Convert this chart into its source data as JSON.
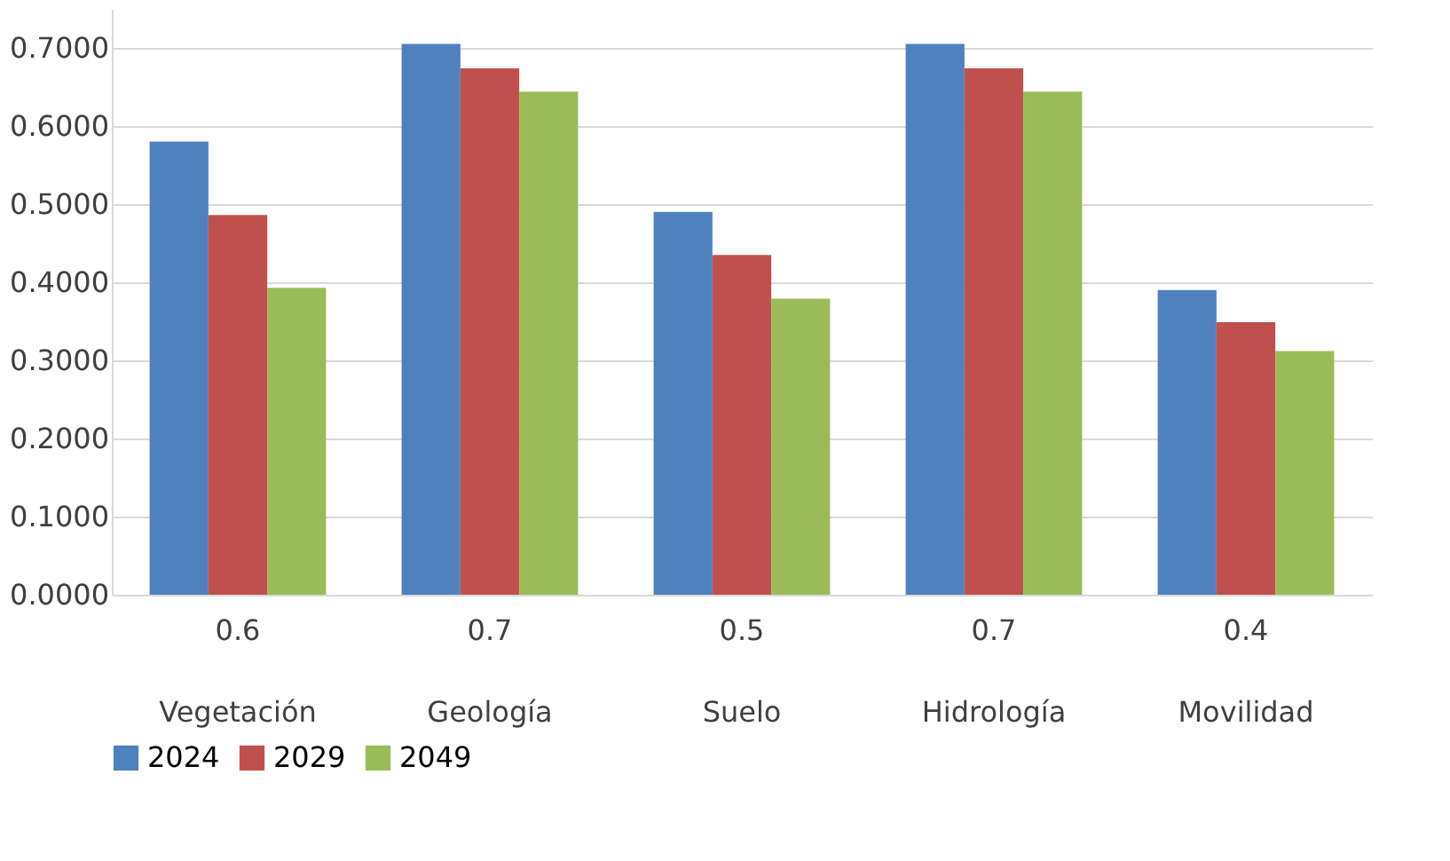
{
  "chart_data": {
    "type": "bar",
    "categories": [
      "0.6\nVegetación",
      "0.7\nGeología",
      "0.5\nSuelo",
      "0.7\nHidrología",
      "0.4\nMovilidad"
    ],
    "series": [
      {
        "name": "2024",
        "color": "#4f81bd",
        "values": [
          0.58,
          0.705,
          0.49,
          0.705,
          0.39
        ]
      },
      {
        "name": "2029",
        "color": "#c0504d",
        "values": [
          0.486,
          0.674,
          0.435,
          0.674,
          0.349
        ]
      },
      {
        "name": "2049",
        "color": "#9bbb59",
        "values": [
          0.393,
          0.644,
          0.379,
          0.644,
          0.312
        ]
      }
    ],
    "ylim": [
      0,
      0.75
    ],
    "yticks": [
      {
        "value": 0,
        "label": "0.0000"
      },
      {
        "value": 0.1,
        "label": "0.1000"
      },
      {
        "value": 0.2,
        "label": "0.2000"
      },
      {
        "value": 0.3,
        "label": "0.3000"
      },
      {
        "value": 0.4,
        "label": "0.4000"
      },
      {
        "value": 0.5,
        "label": "0.5000"
      },
      {
        "value": 0.6,
        "label": "0.6000"
      },
      {
        "value": 0.7,
        "label": "0.7000"
      }
    ],
    "grid": "y",
    "legend": "bottom"
  }
}
